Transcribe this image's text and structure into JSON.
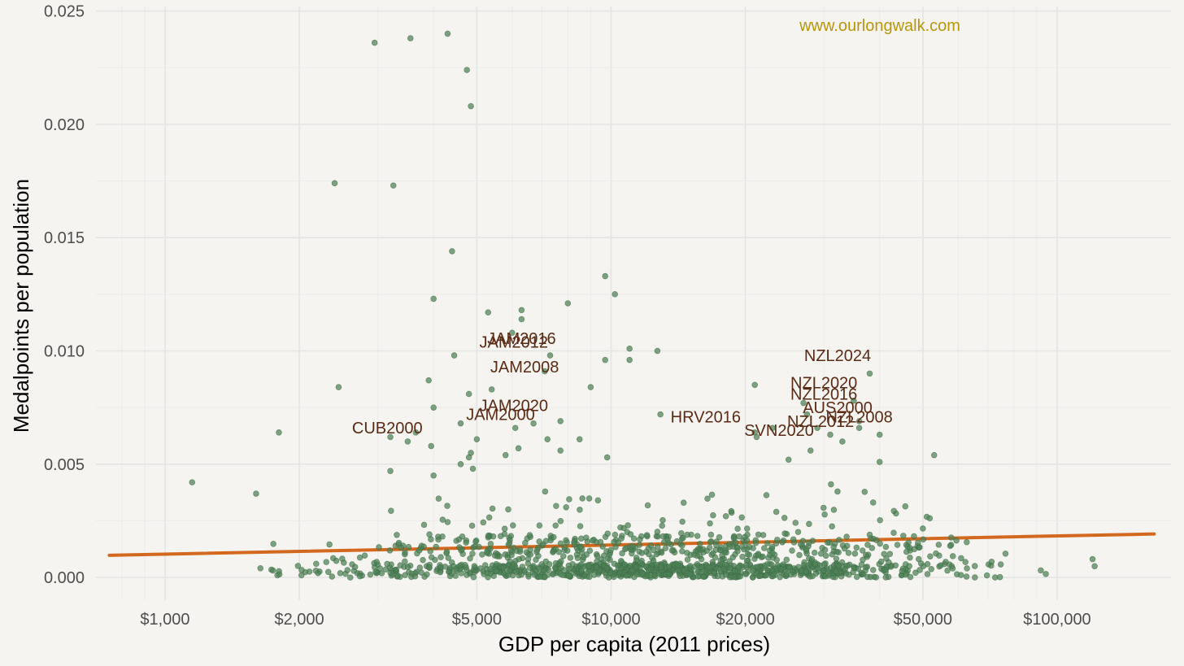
{
  "chart_data": {
    "type": "scatter",
    "title": "",
    "watermark": "www.ourlongwalk.com",
    "xlabel": "GDP per capita (2011 prices)",
    "ylabel": "Medalpoints per population",
    "x_scale": "log",
    "xlim": [
      700,
      180000
    ],
    "ylim": [
      -0.001,
      0.0252
    ],
    "x_ticks": [
      {
        "value": 1000,
        "label": "$1,000"
      },
      {
        "value": 2000,
        "label": "$2,000"
      },
      {
        "value": 5000,
        "label": "$5,000"
      },
      {
        "value": 10000,
        "label": "$10,000"
      },
      {
        "value": 20000,
        "label": "$20,000"
      },
      {
        "value": 50000,
        "label": "$50,000"
      },
      {
        "value": 100000,
        "label": "$100,000"
      }
    ],
    "x_minor_grid": [
      800,
      900,
      3000,
      4000,
      6000,
      7000,
      8000,
      9000,
      30000,
      40000,
      60000,
      70000,
      80000,
      90000
    ],
    "y_ticks": [
      {
        "value": 0,
        "label": "0.000"
      },
      {
        "value": 0.005,
        "label": "0.005"
      },
      {
        "value": 0.01,
        "label": "0.010"
      },
      {
        "value": 0.015,
        "label": "0.015"
      },
      {
        "value": 0.02,
        "label": "0.020"
      },
      {
        "value": 0.025,
        "label": "0.025"
      }
    ],
    "grid": true,
    "point_color": "#4e8156",
    "trend_color": "#d2691e",
    "trend_line": {
      "x": [
        750,
        165000
      ],
      "y": [
        0.00098,
        0.00192
      ]
    },
    "labeled_points": [
      {
        "label": "JAM2016",
        "x": 6300,
        "y": 0.01055
      },
      {
        "label": "JAM2012",
        "x": 6050,
        "y": 0.0104
      },
      {
        "label": "JAM2008",
        "x": 6400,
        "y": 0.0093
      },
      {
        "label": "JAM2020",
        "x": 6050,
        "y": 0.0076
      },
      {
        "label": "JAM2000",
        "x": 5650,
        "y": 0.0072
      },
      {
        "label": "CUB2000",
        "x": 3150,
        "y": 0.0066
      },
      {
        "label": "HRV2016",
        "x": 16300,
        "y": 0.0071
      },
      {
        "label": "SVN2020",
        "x": 23800,
        "y": 0.0065
      },
      {
        "label": "NZL2024",
        "x": 32200,
        "y": 0.0098
      },
      {
        "label": "NZL2020",
        "x": 30000,
        "y": 0.0086
      },
      {
        "label": "NZL2016",
        "x": 30000,
        "y": 0.0081
      },
      {
        "label": "AUS2000",
        "x": 32200,
        "y": 0.0075
      },
      {
        "label": "NZL2012",
        "x": 29500,
        "y": 0.0069
      },
      {
        "label": "NZL2008",
        "x": 36000,
        "y": 0.0071
      }
    ],
    "highlight_points": [
      [
        2950,
        0.0236
      ],
      [
        3550,
        0.0238
      ],
      [
        4300,
        0.024
      ],
      [
        4750,
        0.0224
      ],
      [
        4850,
        0.0208
      ],
      [
        2400,
        0.0174
      ],
      [
        3250,
        0.0173
      ],
      [
        4400,
        0.0144
      ],
      [
        4000,
        0.0123
      ],
      [
        5300,
        0.0117
      ],
      [
        6300,
        0.0118
      ],
      [
        6300,
        0.0114
      ],
      [
        6000,
        0.0108
      ],
      [
        7300,
        0.0098
      ],
      [
        4450,
        0.0098
      ],
      [
        5400,
        0.0083
      ],
      [
        4800,
        0.0081
      ],
      [
        2450,
        0.0084
      ],
      [
        3900,
        0.0087
      ],
      [
        8000,
        0.0121
      ],
      [
        9700,
        0.0133
      ],
      [
        10200,
        0.0125
      ],
      [
        11000,
        0.0101
      ],
      [
        11000,
        0.0096
      ],
      [
        12700,
        0.01
      ],
      [
        9000,
        0.0084
      ],
      [
        9700,
        0.0096
      ],
      [
        7100,
        0.0091
      ],
      [
        1800,
        0.0064
      ],
      [
        3200,
        0.0062
      ],
      [
        3650,
        0.0064
      ],
      [
        3500,
        0.006
      ],
      [
        3950,
        0.0058
      ],
      [
        4000,
        0.0075
      ],
      [
        4600,
        0.0068
      ],
      [
        5000,
        0.0061
      ],
      [
        6100,
        0.0066
      ],
      [
        6700,
        0.0068
      ],
      [
        7200,
        0.0061
      ],
      [
        7700,
        0.0069
      ],
      [
        8500,
        0.0061
      ],
      [
        12900,
        0.0072
      ],
      [
        21000,
        0.0085
      ],
      [
        21000,
        0.0064
      ],
      [
        21200,
        0.0062
      ],
      [
        23000,
        0.0066
      ],
      [
        25000,
        0.0052
      ],
      [
        27000,
        0.0077
      ],
      [
        27500,
        0.0072
      ],
      [
        29000,
        0.0066
      ],
      [
        31000,
        0.0063
      ],
      [
        33000,
        0.006
      ],
      [
        35000,
        0.0078
      ],
      [
        36000,
        0.0069
      ],
      [
        36000,
        0.0066
      ],
      [
        38000,
        0.009
      ],
      [
        40000,
        0.0063
      ],
      [
        28000,
        0.0056
      ],
      [
        40000,
        0.0051
      ],
      [
        53000,
        0.0054
      ],
      [
        4850,
        0.0055
      ],
      [
        4800,
        0.0053
      ],
      [
        4600,
        0.005
      ],
      [
        4900,
        0.0048
      ],
      [
        4000,
        0.0045
      ],
      [
        3200,
        0.0047
      ],
      [
        1150,
        0.0042
      ],
      [
        1600,
        0.0037
      ],
      [
        6200,
        0.0057
      ],
      [
        5800,
        0.0054
      ],
      [
        7700,
        0.0056
      ],
      [
        9800,
        0.0053
      ]
    ]
  }
}
